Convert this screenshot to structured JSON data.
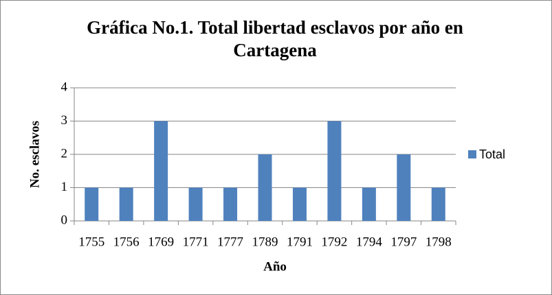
{
  "chart_data": {
    "type": "bar",
    "title": "Gráfica No.1. Total libertad esclavos por año en Cartagena",
    "x_label": "Año",
    "y_label": "No.  esclavos",
    "categories": [
      "1755",
      "1756",
      "1769",
      "1771",
      "1777",
      "1789",
      "1791",
      "1792",
      "1794",
      "1797",
      "1798"
    ],
    "series": [
      {
        "name": "Total",
        "color": "#4f81bd",
        "values": [
          1,
          1,
          3,
          1,
          1,
          2,
          1,
          3,
          1,
          2,
          1
        ]
      }
    ],
    "ylim": [
      0,
      4
    ],
    "yticks": [
      0,
      1,
      2,
      3,
      4
    ],
    "grid": true,
    "legend": "right"
  }
}
